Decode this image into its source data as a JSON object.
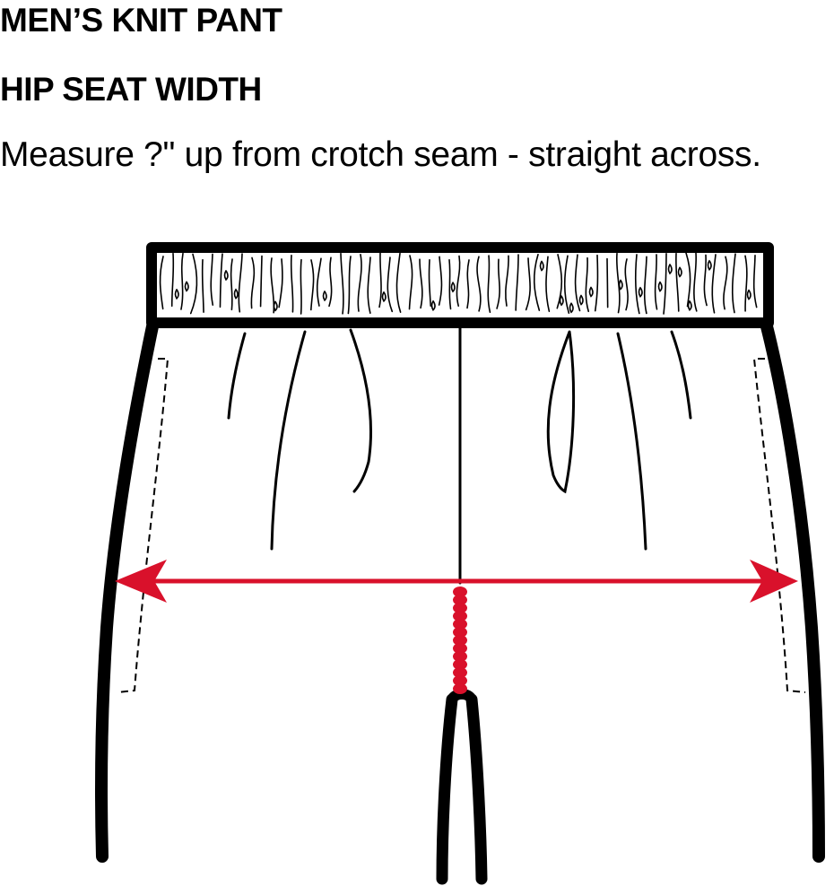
{
  "heading": {
    "product": "MEN’S KNIT PANT",
    "measurement": "HIP SEAT WIDTH",
    "instruction": "Measure ?\" up from crotch seam - straight across."
  },
  "diagram": {
    "subject": "knit pant front",
    "measure_line": "hip seat width",
    "outline_color": "#000000",
    "measure_color": "#d9112b",
    "icons": [
      "waistband-elastic-icon",
      "arrow-left-icon",
      "arrow-right-icon"
    ]
  }
}
